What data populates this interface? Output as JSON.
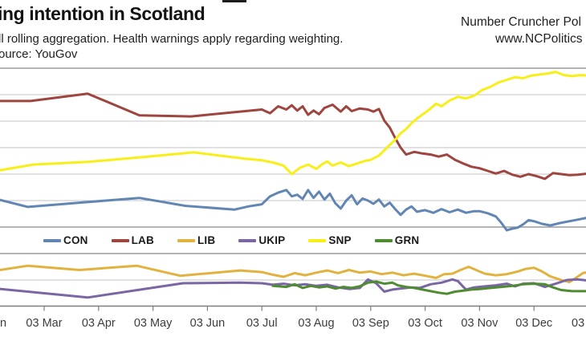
{
  "header": {
    "title_fragment": "ing intention in Scotland",
    "subtitle_fragment": "ll rolling aggregation. Health warnings apply regarding weighting.",
    "source_fragment": "ource: YouGov",
    "brand_name_fragment": "Number Cruncher Pol",
    "brand_url_fragment": "www.NCPolitics"
  },
  "chart_data": {
    "type": "line",
    "title": "Voting intention in Scotland (cropped view)",
    "xlabel": "",
    "ylabel": "",
    "x_unit": "months after 03 Feb",
    "x_tick_labels": [
      {
        "label": "03 Mar",
        "month": 1
      },
      {
        "label": "03 Apr",
        "month": 2
      },
      {
        "label": "03 May",
        "month": 3
      },
      {
        "label": "03 Jun",
        "month": 4
      },
      {
        "label": "03 Jul",
        "month": 5
      },
      {
        "label": "03 Aug",
        "month": 6
      },
      {
        "label": "03 Sep",
        "month": 7
      },
      {
        "label": "03 Oct",
        "month": 8
      },
      {
        "label": "03 Nov",
        "month": 9
      },
      {
        "label": "03 Dec",
        "month": 10
      }
    ],
    "left_edge_label_fragment": "n",
    "right_edge_label_fragment": "03",
    "ylim": [
      0,
      45
    ],
    "grid": true,
    "grid_interval_pct": 5,
    "y_tick_labels_visible": false,
    "legend_position": "horizontal band inside plot",
    "series": [
      {
        "name": "CON",
        "color": "#6286b4",
        "points": [
          [
            0,
            20.6
          ],
          [
            0.7,
            18.8
          ],
          [
            1.65,
            19.6
          ],
          [
            2.75,
            20.5
          ],
          [
            3.6,
            19.0
          ],
          [
            4.5,
            18.3
          ],
          [
            4.75,
            18.9
          ],
          [
            5.0,
            19.3
          ],
          [
            5.15,
            20.8
          ],
          [
            5.3,
            21.5
          ],
          [
            5.45,
            22.0
          ],
          [
            5.55,
            20.8
          ],
          [
            5.65,
            21.1
          ],
          [
            5.75,
            20.3
          ],
          [
            5.85,
            22.0
          ],
          [
            5.95,
            20.5
          ],
          [
            6.05,
            21.7
          ],
          [
            6.15,
            20.2
          ],
          [
            6.25,
            21.3
          ],
          [
            6.35,
            19.5
          ],
          [
            6.45,
            18.5
          ],
          [
            6.55,
            20.0
          ],
          [
            6.65,
            21.0
          ],
          [
            6.75,
            19.3
          ],
          [
            6.85,
            20.4
          ],
          [
            6.95,
            20.0
          ],
          [
            7.05,
            19.4
          ],
          [
            7.15,
            20.2
          ],
          [
            7.25,
            18.9
          ],
          [
            7.35,
            19.6
          ],
          [
            7.45,
            18.4
          ],
          [
            7.55,
            17.3
          ],
          [
            7.65,
            18.3
          ],
          [
            7.75,
            18.9
          ],
          [
            7.85,
            17.9
          ],
          [
            8.0,
            18.2
          ],
          [
            8.15,
            17.7
          ],
          [
            8.3,
            18.4
          ],
          [
            8.45,
            17.8
          ],
          [
            8.6,
            18.3
          ],
          [
            8.75,
            17.7
          ],
          [
            8.9,
            18.0
          ],
          [
            9.0,
            18.0
          ],
          [
            9.15,
            17.6
          ],
          [
            9.3,
            17.0
          ],
          [
            9.4,
            15.8
          ],
          [
            9.5,
            14.4
          ],
          [
            9.6,
            14.7
          ],
          [
            9.7,
            14.9
          ],
          [
            9.8,
            15.5
          ],
          [
            9.9,
            16.3
          ],
          [
            10.0,
            16.1
          ],
          [
            10.15,
            15.6
          ],
          [
            10.3,
            15.3
          ],
          [
            10.45,
            15.7
          ],
          [
            10.6,
            16.0
          ],
          [
            10.8,
            16.4
          ],
          [
            11,
            16.8
          ]
        ]
      },
      {
        "name": "LAB",
        "color": "#9e453f",
        "points": [
          [
            0,
            38.8
          ],
          [
            0.75,
            38.8
          ],
          [
            1.8,
            40.2
          ],
          [
            2.75,
            36.1
          ],
          [
            3.7,
            35.9
          ],
          [
            4.6,
            36.8
          ],
          [
            5.0,
            37.2
          ],
          [
            5.15,
            36.5
          ],
          [
            5.3,
            37.8
          ],
          [
            5.45,
            37.2
          ],
          [
            5.55,
            38.0
          ],
          [
            5.65,
            37.0
          ],
          [
            5.75,
            37.8
          ],
          [
            5.85,
            36.2
          ],
          [
            5.95,
            37.0
          ],
          [
            6.05,
            36.3
          ],
          [
            6.15,
            37.5
          ],
          [
            6.3,
            38.1
          ],
          [
            6.45,
            36.8
          ],
          [
            6.55,
            37.8
          ],
          [
            6.65,
            36.9
          ],
          [
            6.8,
            37.4
          ],
          [
            6.95,
            37.2
          ],
          [
            7.05,
            36.8
          ],
          [
            7.15,
            37.3
          ],
          [
            7.25,
            35.1
          ],
          [
            7.35,
            33.8
          ],
          [
            7.45,
            31.8
          ],
          [
            7.55,
            30.0
          ],
          [
            7.65,
            28.7
          ],
          [
            7.8,
            29.2
          ],
          [
            7.95,
            28.9
          ],
          [
            8.1,
            28.7
          ],
          [
            8.25,
            28.3
          ],
          [
            8.4,
            28.7
          ],
          [
            8.55,
            27.7
          ],
          [
            8.7,
            27.0
          ],
          [
            8.85,
            26.4
          ],
          [
            9.0,
            26.1
          ],
          [
            9.15,
            25.6
          ],
          [
            9.3,
            25.1
          ],
          [
            9.45,
            25.6
          ],
          [
            9.6,
            24.9
          ],
          [
            9.75,
            24.5
          ],
          [
            9.9,
            25.0
          ],
          [
            10.05,
            24.6
          ],
          [
            10.2,
            24.1
          ],
          [
            10.35,
            25.2
          ],
          [
            10.5,
            25.0
          ],
          [
            10.65,
            24.8
          ],
          [
            10.8,
            24.9
          ],
          [
            11,
            25.1
          ]
        ]
      },
      {
        "name": "LIB",
        "color": "#e2b23e",
        "points": [
          [
            0,
            6.6
          ],
          [
            0.7,
            7.7
          ],
          [
            1.65,
            6.9
          ],
          [
            2.7,
            7.7
          ],
          [
            3.5,
            5.8
          ],
          [
            4.6,
            6.8
          ],
          [
            5.0,
            6.5
          ],
          [
            5.2,
            6.0
          ],
          [
            5.4,
            5.6
          ],
          [
            5.6,
            6.3
          ],
          [
            5.8,
            5.9
          ],
          [
            6.0,
            6.4
          ],
          [
            6.2,
            6.8
          ],
          [
            6.4,
            6.3
          ],
          [
            6.6,
            6.9
          ],
          [
            6.8,
            6.4
          ],
          [
            7.0,
            6.6
          ],
          [
            7.2,
            6.1
          ],
          [
            7.4,
            6.4
          ],
          [
            7.6,
            5.9
          ],
          [
            7.8,
            6.2
          ],
          [
            8.0,
            5.8
          ],
          [
            8.2,
            5.4
          ],
          [
            8.35,
            6.1
          ],
          [
            8.5,
            6.2
          ],
          [
            8.65,
            6.9
          ],
          [
            8.8,
            7.5
          ],
          [
            9.0,
            6.6
          ],
          [
            9.1,
            6.2
          ],
          [
            9.3,
            5.9
          ],
          [
            9.5,
            6.1
          ],
          [
            9.7,
            6.6
          ],
          [
            9.85,
            7.1
          ],
          [
            10.0,
            7.3
          ],
          [
            10.15,
            6.6
          ],
          [
            10.3,
            5.7
          ],
          [
            10.5,
            5.0
          ],
          [
            10.65,
            4.6
          ],
          [
            10.8,
            5.6
          ],
          [
            10.9,
            6.3
          ],
          [
            11,
            6.5
          ]
        ]
      },
      {
        "name": "UKIP",
        "color": "#7a66a5",
        "points": [
          [
            0,
            3.5
          ],
          [
            1.8,
            1.7
          ],
          [
            3.55,
            4.4
          ],
          [
            4.6,
            4.5
          ],
          [
            5.0,
            4.4
          ],
          [
            5.2,
            4.1
          ],
          [
            5.4,
            4.3
          ],
          [
            5.6,
            4.0
          ],
          [
            5.8,
            4.2
          ],
          [
            6.0,
            3.9
          ],
          [
            6.2,
            4.1
          ],
          [
            6.4,
            3.6
          ],
          [
            6.6,
            3.3
          ],
          [
            6.8,
            3.5
          ],
          [
            6.95,
            5.1
          ],
          [
            7.1,
            4.4
          ],
          [
            7.25,
            2.8
          ],
          [
            7.4,
            3.2
          ],
          [
            7.55,
            3.4
          ],
          [
            7.75,
            3.6
          ],
          [
            7.9,
            3.5
          ],
          [
            8.1,
            4.2
          ],
          [
            8.3,
            4.5
          ],
          [
            8.5,
            5.1
          ],
          [
            8.6,
            4.8
          ],
          [
            8.75,
            3.2
          ],
          [
            8.9,
            3.6
          ],
          [
            9.1,
            3.8
          ],
          [
            9.3,
            4.0
          ],
          [
            9.5,
            4.3
          ],
          [
            9.65,
            3.8
          ],
          [
            9.8,
            4.3
          ],
          [
            10.0,
            4.4
          ],
          [
            10.2,
            3.7
          ],
          [
            10.4,
            4.3
          ],
          [
            10.6,
            5.0
          ],
          [
            10.8,
            5.1
          ],
          [
            11,
            4.9
          ]
        ]
      },
      {
        "name": "SNP",
        "color": "#f8ef19",
        "points": [
          [
            0,
            25.4
          ],
          [
            0.8,
            26.8
          ],
          [
            1.8,
            27.3
          ],
          [
            2.8,
            28.2
          ],
          [
            3.75,
            29.1
          ],
          [
            4.7,
            27.9
          ],
          [
            5.0,
            27.6
          ],
          [
            5.2,
            27.2
          ],
          [
            5.4,
            26.6
          ],
          [
            5.55,
            25.0
          ],
          [
            5.7,
            26.2
          ],
          [
            5.85,
            26.8
          ],
          [
            6.0,
            26.0
          ],
          [
            6.1,
            26.8
          ],
          [
            6.2,
            27.4
          ],
          [
            6.3,
            26.6
          ],
          [
            6.45,
            27.2
          ],
          [
            6.6,
            26.5
          ],
          [
            6.75,
            27.0
          ],
          [
            6.9,
            27.5
          ],
          [
            7.0,
            27.7
          ],
          [
            7.15,
            28.5
          ],
          [
            7.3,
            30.0
          ],
          [
            7.45,
            31.5
          ],
          [
            7.55,
            32.7
          ],
          [
            7.65,
            33.5
          ],
          [
            7.75,
            34.6
          ],
          [
            7.85,
            35.5
          ],
          [
            8.0,
            36.6
          ],
          [
            8.1,
            37.4
          ],
          [
            8.2,
            38.3
          ],
          [
            8.3,
            37.8
          ],
          [
            8.45,
            38.9
          ],
          [
            8.6,
            39.6
          ],
          [
            8.75,
            39.3
          ],
          [
            8.9,
            39.8
          ],
          [
            9.05,
            40.9
          ],
          [
            9.2,
            41.5
          ],
          [
            9.35,
            42.3
          ],
          [
            9.5,
            42.8
          ],
          [
            9.65,
            43.3
          ],
          [
            9.8,
            43.1
          ],
          [
            9.95,
            43.6
          ],
          [
            10.1,
            43.8
          ],
          [
            10.25,
            44.0
          ],
          [
            10.4,
            44.3
          ],
          [
            10.55,
            43.7
          ],
          [
            10.7,
            43.5
          ],
          [
            10.85,
            43.7
          ],
          [
            11,
            43.6
          ]
        ]
      },
      {
        "name": "GRN",
        "color": "#4e8b31",
        "points": [
          [
            5.2,
            3.9
          ],
          [
            5.45,
            3.7
          ],
          [
            5.6,
            4.2
          ],
          [
            5.75,
            3.5
          ],
          [
            5.9,
            3.9
          ],
          [
            6.05,
            3.6
          ],
          [
            6.2,
            3.8
          ],
          [
            6.35,
            3.4
          ],
          [
            6.5,
            3.7
          ],
          [
            6.65,
            3.5
          ],
          [
            6.8,
            3.8
          ],
          [
            6.95,
            4.5
          ],
          [
            7.1,
            4.7
          ],
          [
            7.25,
            4.3
          ],
          [
            7.4,
            4.5
          ],
          [
            7.5,
            4.0
          ],
          [
            7.65,
            3.7
          ],
          [
            7.8,
            3.5
          ],
          [
            7.95,
            3.2
          ],
          [
            8.1,
            2.9
          ],
          [
            8.25,
            2.6
          ],
          [
            8.4,
            2.4
          ],
          [
            8.55,
            2.8
          ],
          [
            8.7,
            3.0
          ],
          [
            8.85,
            3.2
          ],
          [
            9.0,
            3.3
          ],
          [
            9.2,
            3.5
          ],
          [
            9.4,
            3.7
          ],
          [
            9.6,
            3.9
          ],
          [
            9.8,
            4.2
          ],
          [
            10.0,
            4.3
          ],
          [
            10.2,
            4.2
          ],
          [
            10.35,
            3.6
          ],
          [
            10.5,
            3.1
          ],
          [
            10.7,
            2.9
          ],
          [
            11,
            2.9
          ]
        ]
      }
    ]
  },
  "legend": {
    "labels": [
      "CON",
      "LAB",
      "LIB",
      "UKIP",
      "SNP",
      "GRN"
    ]
  }
}
